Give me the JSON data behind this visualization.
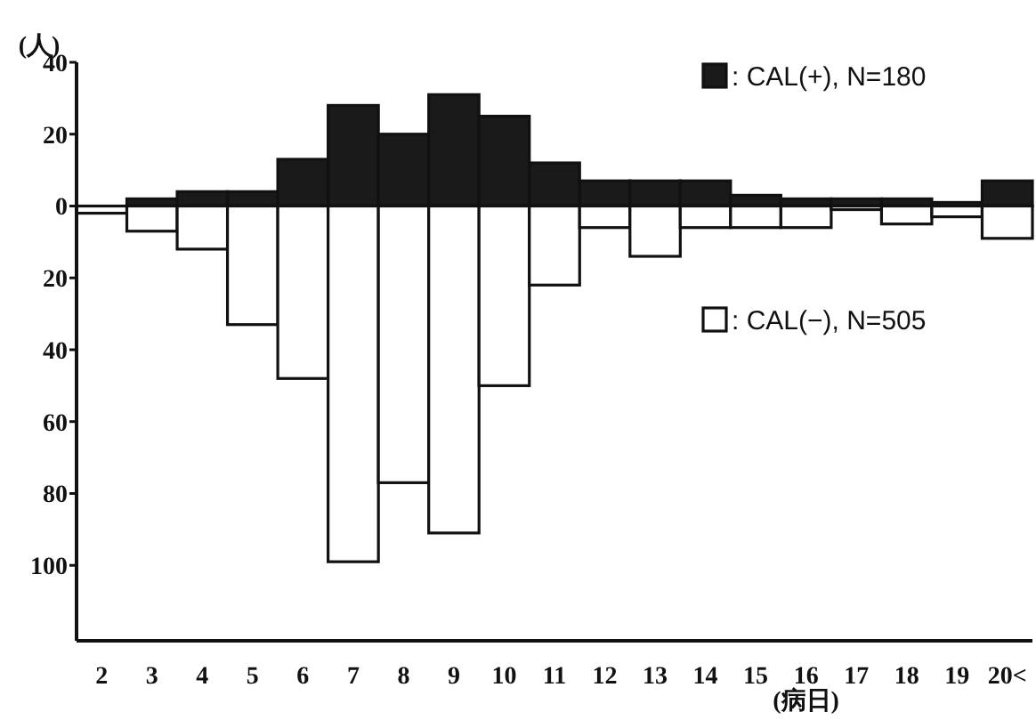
{
  "chart_data": {
    "type": "bar",
    "ylabel": "(人)",
    "xlabel": "(病日)",
    "categories": [
      "2",
      "3",
      "4",
      "5",
      "6",
      "7",
      "8",
      "9",
      "10",
      "11",
      "12",
      "13",
      "14",
      "15",
      "16",
      "17",
      "18",
      "19",
      "20<"
    ],
    "series": [
      {
        "name": ": CAL(+), N=180",
        "color": "#1a1a1a",
        "values": [
          0,
          2,
          4,
          4,
          13,
          28,
          20,
          31,
          25,
          12,
          7,
          7,
          7,
          3,
          2,
          2,
          2,
          1,
          7
        ]
      },
      {
        "name": ": CAL(−), N=505",
        "color": "#ffffff",
        "values": [
          -2,
          -7,
          -12,
          -33,
          -48,
          -99,
          -77,
          -91,
          -50,
          -22,
          -6,
          -14,
          -6,
          -6,
          -6,
          -1,
          -5,
          -3,
          -9
        ]
      }
    ],
    "ylim": [
      -121,
      40
    ],
    "yticks": [
      40,
      20,
      0,
      {
        "value": -20,
        "label": "20"
      },
      {
        "value": -40,
        "label": "40"
      },
      {
        "value": -60,
        "label": "60"
      },
      {
        "value": -80,
        "label": "80"
      },
      {
        "value": -100,
        "label": "100"
      }
    ],
    "grid": false,
    "stacked": true,
    "legend": "right"
  }
}
